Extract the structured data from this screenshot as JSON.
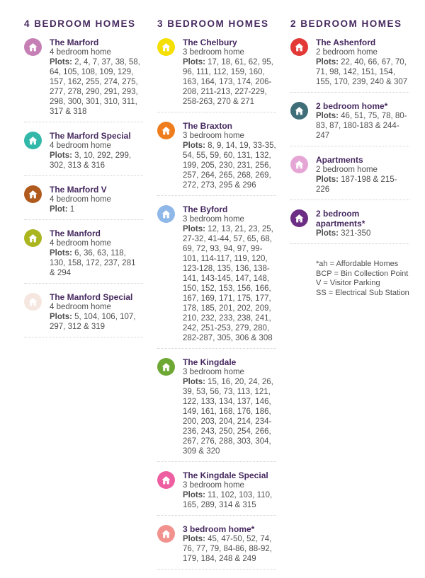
{
  "theme": {
    "heading_color": "#472a60",
    "text_color": "#4f4f4f",
    "separator_color": "#d5d1cc",
    "icon_glyph_color": "#ffffff"
  },
  "columns": [
    {
      "header": "4 BEDROOM HOMES",
      "items": [
        {
          "title": "The Marford",
          "subtitle": "4 bedroom home",
          "plots_label": "Plots:",
          "plots": "2, 4, 7, 37, 38, 58, 64, 105, 108, 109, 129, 157, 162, 255, 274, 275, 277, 278, 290, 291, 293, 298, 300, 301, 310, 311, 317 & 318",
          "icon": "house-icon",
          "color": "#c67fb5"
        },
        {
          "title": "The Marford Special",
          "subtitle": "4 bedroom home",
          "plots_label": "Plots:",
          "plots": "3, 10, 292, 299, 302, 313 & 316",
          "icon": "house-icon",
          "color": "#31b8a9"
        },
        {
          "title": "The Marford V",
          "subtitle": "4 bedroom home",
          "plots_label": "Plot:",
          "plots": "1",
          "icon": "house-icon",
          "color": "#b05a1e"
        },
        {
          "title": "The Manford",
          "subtitle": "4 bedroom home",
          "plots_label": "Plots:",
          "plots": "6, 36, 63, 118, 130, 158, 172, 237, 281 & 294",
          "icon": "house-icon",
          "color": "#abb51f"
        },
        {
          "title": "The Manford Special",
          "subtitle": "4 bedroom home",
          "plots_label": "Plots:",
          "plots": "5, 104, 106, 107, 297, 312 & 319",
          "icon": "house-icon",
          "color": "#f5e6df"
        }
      ]
    },
    {
      "header": "3 BEDROOM HOMES",
      "items": [
        {
          "title": "The Chelbury",
          "subtitle": "3 bedroom home",
          "plots_label": "Plots:",
          "plots": "17, 18, 61, 62, 95, 96, 111, 112, 159, 160, 163, 164, 173, 174, 206-208, 211-213, 227-229, 258-263, 270 & 271",
          "icon": "house-icon",
          "color": "#f4df00"
        },
        {
          "title": "The Braxton",
          "subtitle": "3 bedroom home",
          "plots_label": "Plots:",
          "plots": "8, 9, 14, 19, 33-35, 54, 55, 59, 60, 131, 132, 199, 205, 230, 231, 256, 257, 264, 265, 268, 269, 272, 273, 295 & 296",
          "icon": "house-icon",
          "color": "#ef7d1d"
        },
        {
          "title": "The Byford",
          "subtitle": "3 bedroom home",
          "plots_label": "Plots:",
          "plots": "12, 13, 21, 23, 25, 27-32, 41-44, 57, 65, 68, 69, 72, 93, 94, 97, 99-101, 114-117, 119, 120, 123-128, 135, 136, 138-141, 143-145, 147, 148, 150, 152, 153, 156, 166, 167, 169, 171, 175, 177, 178, 185, 201, 202, 209, 210, 232, 233, 238, 241, 242, 251-253, 279, 280, 282-287, 305, 306 & 308",
          "icon": "house-icon",
          "color": "#8fb7e8"
        },
        {
          "title": "The Kingdale",
          "subtitle": "3 bedroom home",
          "plots_label": "Plots:",
          "plots": "15, 16, 20, 24, 26, 39, 53, 56, 73, 113, 121, 122, 133, 134, 137, 146, 149, 161, 168, 176, 186, 200, 203, 204, 214, 234-236, 243, 250, 254, 266, 267, 276, 288, 303, 304, 309 & 320",
          "icon": "house-icon",
          "color": "#6ea834"
        },
        {
          "title": "The Kingdale Special",
          "subtitle": "3 bedroom home",
          "plots_label": "Plots:",
          "plots": "11, 102, 103, 110, 165, 289, 314 & 315",
          "icon": "house-icon",
          "color": "#ee5fa2"
        },
        {
          "title": "3 bedroom home*",
          "subtitle": "",
          "plots_label": "Plots:",
          "plots": "45, 47-50, 52, 74, 76, 77, 79, 84-86, 88-92, 179, 184, 248 & 249",
          "icon": "house-icon",
          "color": "#f2928e"
        }
      ]
    },
    {
      "header": "2 BEDROOM HOMES",
      "items": [
        {
          "title": "The Ashenford",
          "subtitle": "2 bedroom home",
          "plots_label": "Plots:",
          "plots": "22, 40, 66, 67, 70, 71, 98, 142, 151, 154, 155, 170, 239, 240 & 307",
          "icon": "house-icon",
          "color": "#e23936"
        },
        {
          "title": "2 bedroom home*",
          "subtitle": "",
          "plots_label": "Plots:",
          "plots": "46, 51, 75, 78, 80-83, 87, 180-183 & 244-247",
          "icon": "house-icon",
          "color": "#3f6e78"
        },
        {
          "title": "Apartments",
          "subtitle": "2 bedroom home",
          "plots_label": "Plots:",
          "plots": "187-198 & 215-226",
          "icon": "house-icon",
          "color": "#e6a6d5"
        },
        {
          "title": "2 bedroom apartments*",
          "subtitle": "",
          "plots_label": "Plots:",
          "plots": "321-350",
          "icon": "house-icon",
          "color": "#6c2e85"
        }
      ],
      "footnotes": [
        "*ah = Affordable Homes",
        "BCP = Bin Collection Point",
        "V = Visitor Parking",
        "SS = Electrical Sub Station"
      ]
    }
  ]
}
